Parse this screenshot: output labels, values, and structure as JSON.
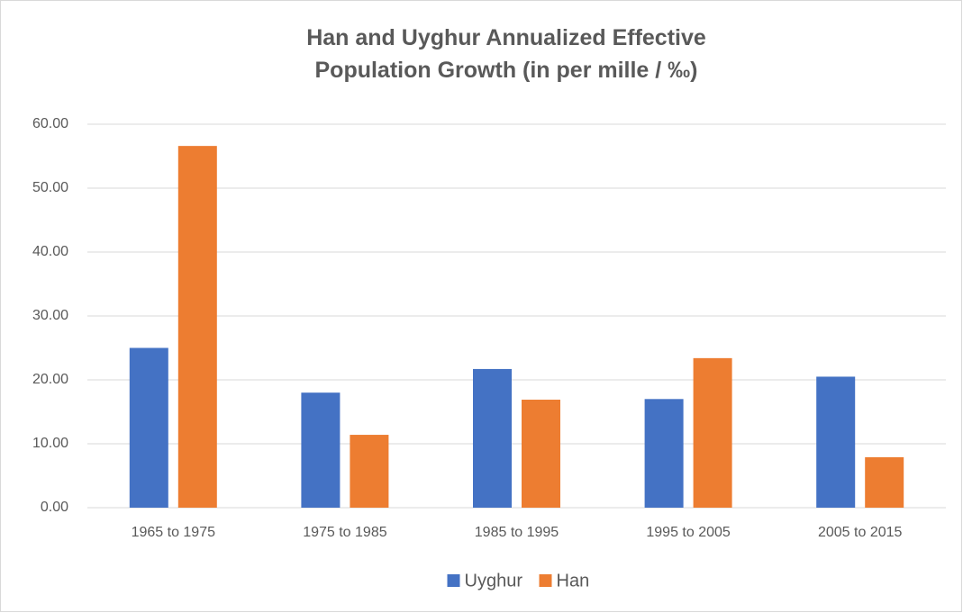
{
  "chart_data": {
    "type": "bar",
    "title": "Han and Uyghur Annualized Effective Population Growth (in per mille / ‰)",
    "categories": [
      "1965 to 1975",
      "1975 to 1985",
      "1985 to 1995",
      "1995 to 2005",
      "2005 to 2015"
    ],
    "series": [
      {
        "name": "Uyghur",
        "color": "#4472c4",
        "values": [
          25.0,
          18.0,
          21.7,
          17.0,
          20.5
        ]
      },
      {
        "name": "Han",
        "color": "#ed7d31",
        "values": [
          56.6,
          11.4,
          16.9,
          23.4,
          7.9
        ]
      }
    ],
    "ylim": [
      0,
      60
    ],
    "yticks": [
      {
        "value": 0,
        "label": "0.00"
      },
      {
        "value": 10,
        "label": "10.00"
      },
      {
        "value": 20,
        "label": "20.00"
      },
      {
        "value": 30,
        "label": "30.00"
      },
      {
        "value": 40,
        "label": "40.00"
      },
      {
        "value": 50,
        "label": "50.00"
      },
      {
        "value": 60,
        "label": "60.00"
      }
    ],
    "grid": true,
    "legend": "bottom"
  }
}
